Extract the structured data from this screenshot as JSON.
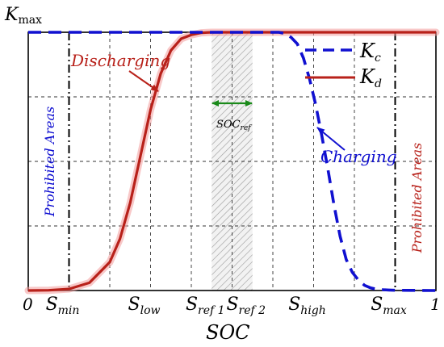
{
  "chart_data": {
    "type": "line",
    "xlabel": "SOC",
    "ylabel_top": "K",
    "ylabel_sub": "max",
    "xlim": [
      0,
      1
    ],
    "ylim": [
      0,
      1
    ],
    "grid": true,
    "legend_placement": "top-right",
    "axis_zero": "0",
    "axis_one": "1",
    "ticks": [
      {
        "main": "S",
        "sub": "min",
        "x": 0.1
      },
      {
        "main": "S",
        "sub": "low",
        "x": 0.3
      },
      {
        "main": "S",
        "sub": "ref 1",
        "x": 0.45
      },
      {
        "main": "S",
        "sub": "ref 2",
        "x": 0.55
      },
      {
        "main": "S",
        "sub": "high",
        "x": 0.7
      },
      {
        "main": "S",
        "sub": "max",
        "x": 0.9
      }
    ],
    "ref_band": {
      "x0": 0.45,
      "x1": 0.55,
      "label_main": "SOC",
      "label_sub": "ref"
    },
    "series": [
      {
        "name_main": "K",
        "name_sub": "c",
        "color": "#1010d0",
        "style": "dashed",
        "x": [
          0,
          0.6,
          0.615,
          0.63,
          0.645,
          0.66,
          0.675,
          0.69,
          0.705,
          0.72,
          0.735,
          0.75,
          0.765,
          0.78,
          0.795,
          0.81,
          0.825,
          0.84,
          0.855,
          0.87,
          0.885,
          0.9,
          1
        ],
        "y": [
          1,
          1,
          1,
          0.995,
          0.98,
          0.955,
          0.9,
          0.82,
          0.72,
          0.6,
          0.47,
          0.33,
          0.21,
          0.12,
          0.07,
          0.04,
          0.02,
          0.01,
          0.005,
          0.003,
          0.002,
          0.001,
          0
        ]
      },
      {
        "name_main": "K",
        "name_sub": "d",
        "color": "#b8211a",
        "style": "solid",
        "x": [
          0,
          0.05,
          0.1,
          0.15,
          0.2,
          0.225,
          0.25,
          0.275,
          0.3,
          0.325,
          0.35,
          0.375,
          0.4,
          0.425,
          0.45,
          1
        ],
        "y": [
          0,
          0.001,
          0.006,
          0.03,
          0.11,
          0.2,
          0.34,
          0.52,
          0.7,
          0.84,
          0.93,
          0.975,
          0.99,
          0.998,
          1,
          1
        ]
      }
    ],
    "annotations": [
      {
        "text": "Discharging",
        "color": "#b8211a"
      },
      {
        "text": "Charging",
        "color": "#1010d0"
      }
    ],
    "regions": [
      {
        "text": "Prohibited Areas",
        "color": "#1010d0"
      },
      {
        "text": "Prohibited Areas",
        "color": "#b8211a"
      }
    ],
    "colors": {
      "discharge": "#b8211a",
      "discharge_shadow": "#f29a9a",
      "charge": "#1010d0",
      "ref_arrow": "#1a8a1a",
      "grid": "#333333"
    }
  }
}
